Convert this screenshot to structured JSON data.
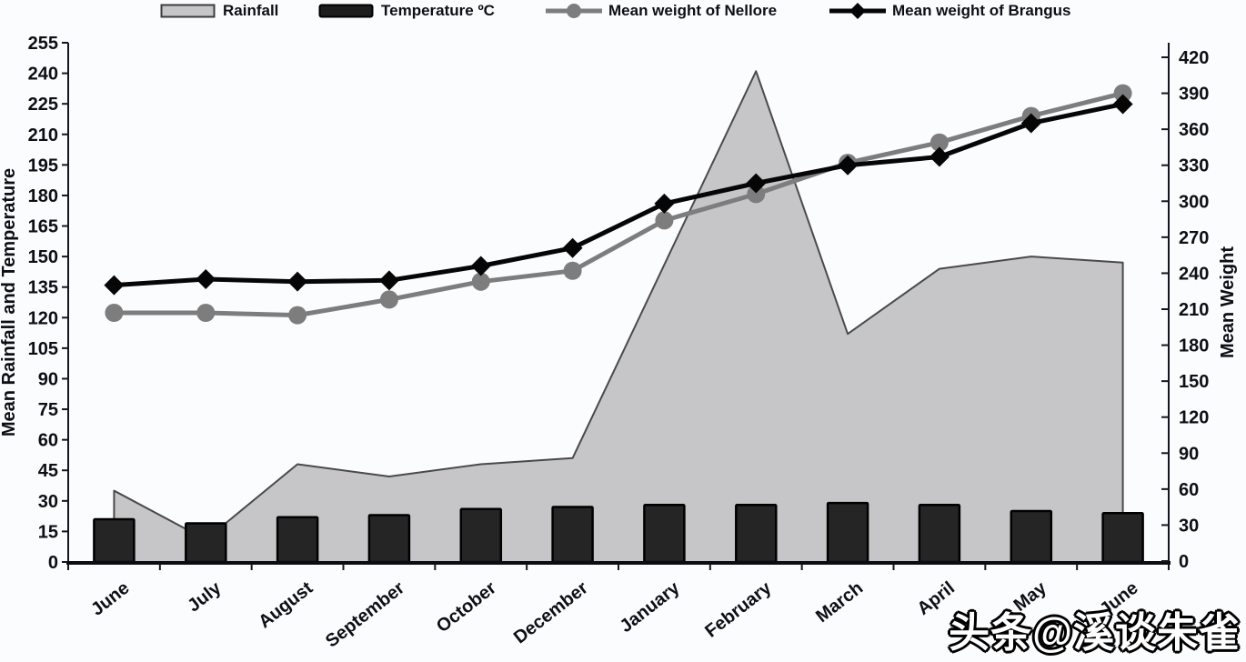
{
  "watermark": {
    "text": "头条@溪谈朱雀"
  },
  "legend": {
    "items": [
      {
        "key": "rainfall",
        "label": "Rainfall",
        "swatch": "area",
        "fill": "#c6c6c9",
        "stroke": "#3c3c3c"
      },
      {
        "key": "temperature",
        "label": "Temperature ºC",
        "swatch": "bar",
        "fill": "#1d1d1d",
        "stroke": "#000000"
      },
      {
        "key": "nellore",
        "label": "Mean weight of Nellore",
        "swatch": "line-circle",
        "color": "#7d7d7d"
      },
      {
        "key": "brangus",
        "label": "Mean weight of Brangus",
        "swatch": "line-diamond",
        "color": "#050505"
      }
    ]
  },
  "chart_data": {
    "type": "combo",
    "categories": [
      "June",
      "July",
      "August",
      "September",
      "October",
      "December",
      "January",
      "February",
      "March",
      "April",
      "May",
      "June"
    ],
    "series": [
      {
        "name": "Rainfall",
        "type": "area",
        "axis": "left",
        "fill": "#c6c6c9",
        "stroke": "#4a4a4a",
        "values": [
          35,
          11,
          48,
          42,
          48,
          51,
          146,
          241,
          112,
          144,
          150,
          147
        ]
      },
      {
        "name": "Temperature ºC",
        "type": "bar",
        "axis": "left",
        "fill": "#252525",
        "stroke": "#000000",
        "values": [
          21,
          19,
          22,
          23,
          26,
          27,
          28,
          28,
          29,
          28,
          25,
          24
        ]
      },
      {
        "name": "Mean weight of Nellore",
        "type": "line",
        "marker": "circle",
        "axis": "right",
        "color": "#7d7d7d",
        "values": [
          207,
          207,
          205,
          218,
          233,
          242,
          284,
          306,
          332,
          349,
          371,
          390
        ]
      },
      {
        "name": "Mean weight of Brangus",
        "type": "line",
        "marker": "diamond",
        "axis": "right",
        "color": "#060606",
        "values": [
          230,
          235,
          233,
          234,
          246,
          261,
          298,
          315,
          330,
          337,
          365,
          381
        ]
      }
    ],
    "left_axis": {
      "title": "Mean Rainfall and Temperature",
      "min": 0,
      "max": 255,
      "step": 15,
      "ticks": [
        0,
        15,
        30,
        45,
        60,
        75,
        90,
        105,
        120,
        135,
        150,
        165,
        180,
        195,
        210,
        225,
        240,
        255
      ]
    },
    "right_axis": {
      "title": "Mean Weight",
      "min": 0,
      "max": 420,
      "step": 30,
      "ticks": [
        0,
        30,
        60,
        90,
        120,
        150,
        180,
        210,
        240,
        270,
        300,
        330,
        360,
        390,
        420
      ]
    },
    "grid": false,
    "legend_position": "top"
  }
}
